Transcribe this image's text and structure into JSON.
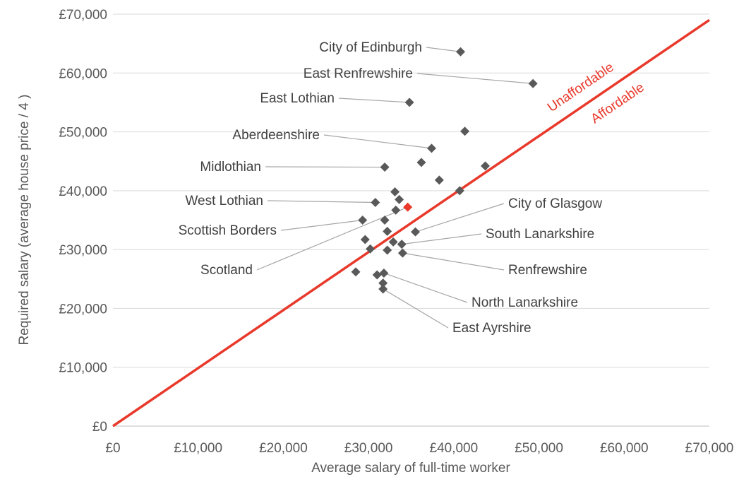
{
  "chart_data": {
    "type": "scatter",
    "xlabel": "Average salary of full-time worker",
    "ylabel": "Required salary (average house price / 4 )",
    "xlim": [
      0,
      70000
    ],
    "ylim": [
      0,
      70000
    ],
    "x_ticks": [
      0,
      10000,
      20000,
      30000,
      40000,
      50000,
      60000,
      70000
    ],
    "y_ticks": [
      0,
      10000,
      20000,
      30000,
      40000,
      50000,
      60000,
      70000
    ],
    "x_tick_labels": [
      "£0",
      "£10,000",
      "£20,000",
      "£30,000",
      "£40,000",
      "£50,000",
      "£60,000",
      "£70,000"
    ],
    "y_tick_labels": [
      "£0",
      "£10,000",
      "£20,000",
      "£30,000",
      "£40,000",
      "£50,000",
      "£60,000",
      "£70,000"
    ],
    "grid": "horizontal",
    "marker_color": "#595959",
    "highlight_color": "#e8392b",
    "reference_line": {
      "from": [
        0,
        0
      ],
      "to": [
        70000,
        69000
      ],
      "color": "#e8392b",
      "labels": [
        "Unaffordable",
        "Affordable"
      ]
    },
    "points": [
      {
        "x": 40800,
        "y": 63600,
        "label": "City of Edinburgh"
      },
      {
        "x": 49300,
        "y": 58200,
        "label": "East Renfrewshire"
      },
      {
        "x": 34800,
        "y": 55000,
        "label": "East Lothian"
      },
      {
        "x": 41300,
        "y": 50100
      },
      {
        "x": 37400,
        "y": 47200,
        "label": "Aberdeenshire"
      },
      {
        "x": 43700,
        "y": 44200
      },
      {
        "x": 36200,
        "y": 44800
      },
      {
        "x": 31900,
        "y": 44000,
        "label": "Midlothian"
      },
      {
        "x": 38300,
        "y": 41800
      },
      {
        "x": 40700,
        "y": 40000
      },
      {
        "x": 33100,
        "y": 39800
      },
      {
        "x": 33600,
        "y": 38500
      },
      {
        "x": 30800,
        "y": 38000,
        "label": "West Lothian"
      },
      {
        "x": 34600,
        "y": 37200,
        "label": "Scotland",
        "highlight": true
      },
      {
        "x": 33200,
        "y": 36700
      },
      {
        "x": 29300,
        "y": 35000,
        "label": "Scottish Borders"
      },
      {
        "x": 31900,
        "y": 35000
      },
      {
        "x": 35500,
        "y": 33000,
        "label": "City of Glasgow"
      },
      {
        "x": 32200,
        "y": 33100
      },
      {
        "x": 29600,
        "y": 31700
      },
      {
        "x": 32900,
        "y": 31300
      },
      {
        "x": 33900,
        "y": 30900,
        "label": "South Lanarkshire"
      },
      {
        "x": 30200,
        "y": 30100
      },
      {
        "x": 32200,
        "y": 29900
      },
      {
        "x": 34000,
        "y": 29400,
        "label": "Renfrewshire"
      },
      {
        "x": 28500,
        "y": 26200
      },
      {
        "x": 31000,
        "y": 25700
      },
      {
        "x": 31800,
        "y": 26000,
        "label": "North Lanarkshire"
      },
      {
        "x": 31700,
        "y": 24300
      },
      {
        "x": 31700,
        "y": 23300,
        "label": "East Ayrshire"
      }
    ]
  }
}
